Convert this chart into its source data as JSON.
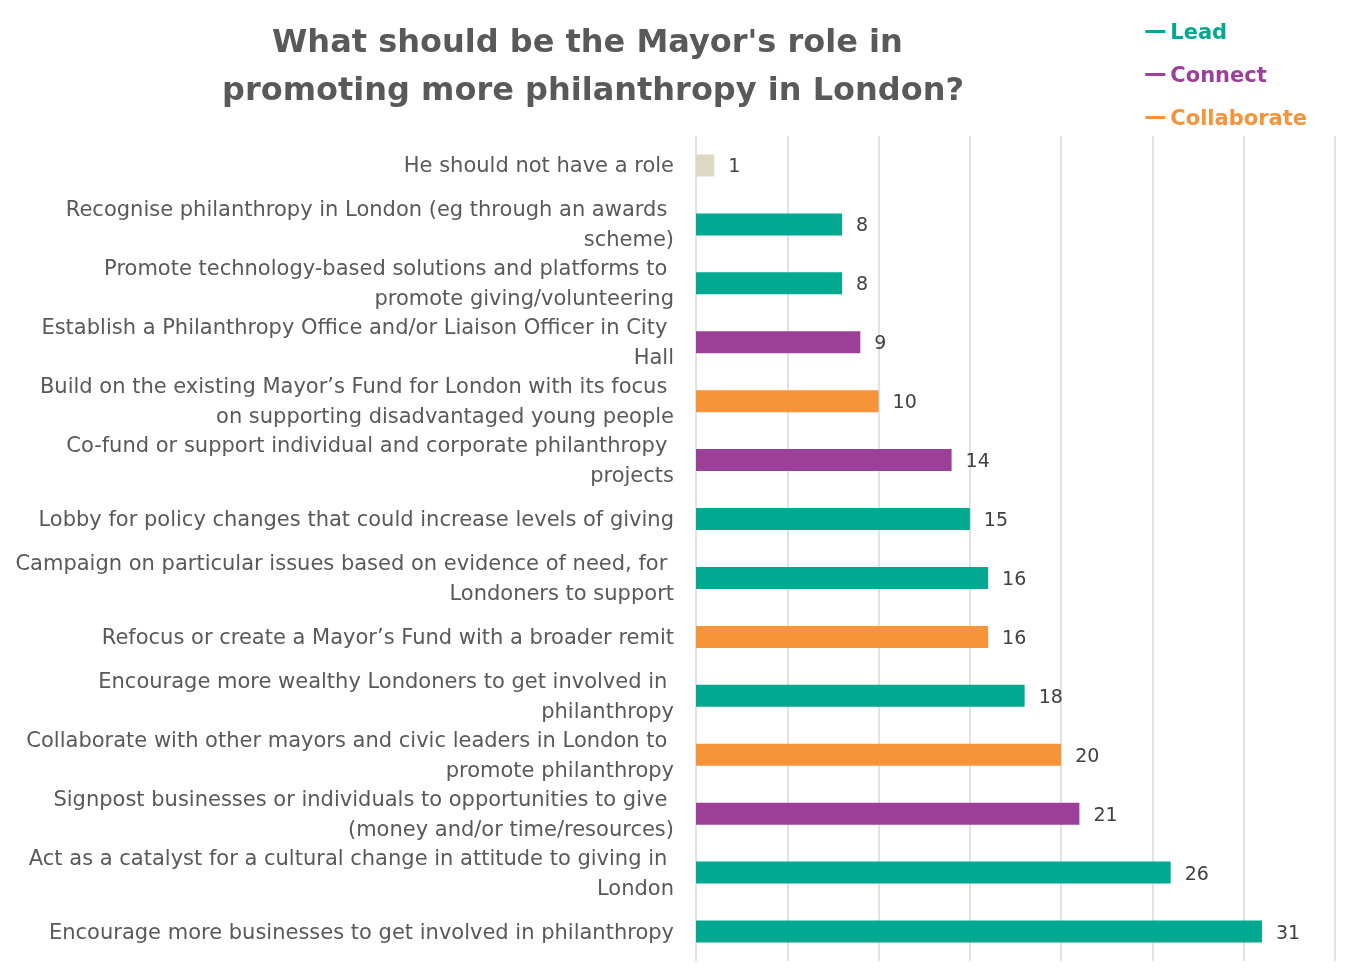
{
  "chart_data": {
    "type": "bar",
    "orientation": "horizontal",
    "stacked": true,
    "title": "What should be the Mayor's role in promoting more philanthropy in London?",
    "categories": [
      "He should not have a role",
      "Recognise philanthropy in London (eg through an awards scheme)",
      "Promote technology-based solutions and platforms to promote giving/volunteering",
      "Establish a Philanthropy Office and/or Liaison Officer in City Hall",
      "Build on the existing Mayor’s Fund for London with its focus on supporting disadvantaged young people",
      "Co-fund or support individual and corporate philanthropy projects",
      "Lobby for policy changes that could increase levels of giving",
      "Campaign on particular issues based on evidence of need, for Londoners to support",
      "Refocus or create a Mayor’s Fund with a broader remit",
      "Encourage more wealthy Londoners to get involved in philanthropy",
      "Collaborate with other mayors and civic leaders in London to promote philanthropy",
      "Signpost businesses or individuals to opportunities to give (money and/or time/resources)",
      "Act as a catalyst for a cultural change in attitude to giving in London",
      "Encourage more businesses to get involved in philanthropy"
    ],
    "series": [
      {
        "name": "Lead",
        "color": "#00a98f",
        "values": [
          null,
          8,
          8,
          null,
          null,
          null,
          15,
          16,
          null,
          18,
          null,
          null,
          26,
          31
        ]
      },
      {
        "name": "Connect",
        "color": "#9c3f98",
        "values": [
          null,
          null,
          null,
          9,
          null,
          14,
          null,
          null,
          null,
          null,
          null,
          21,
          null,
          null
        ]
      },
      {
        "name": "Collaborate",
        "color": "#f7943a",
        "values": [
          null,
          null,
          null,
          null,
          10,
          null,
          null,
          null,
          16,
          null,
          20,
          null,
          null,
          null
        ]
      },
      {
        "color": "#ddd8c4",
        "values": [
          1,
          null,
          null,
          null,
          null,
          null,
          null,
          null,
          null,
          null,
          null,
          null,
          null,
          null
        ]
      }
    ],
    "xlim": [
      0,
      35
    ],
    "xticks": [
      {
        "value": 0,
        "label": null
      },
      {
        "value": 5,
        "label": null
      },
      {
        "value": 10,
        "label": null
      },
      {
        "value": 15,
        "label": null
      },
      {
        "value": 20,
        "label": null
      },
      {
        "value": 25,
        "label": null
      },
      {
        "value": 30,
        "label": null
      },
      {
        "value": 35,
        "label": null
      }
    ],
    "grid": "x",
    "legend": "top right",
    "tick_labels": "y",
    "data_labels": true
  }
}
